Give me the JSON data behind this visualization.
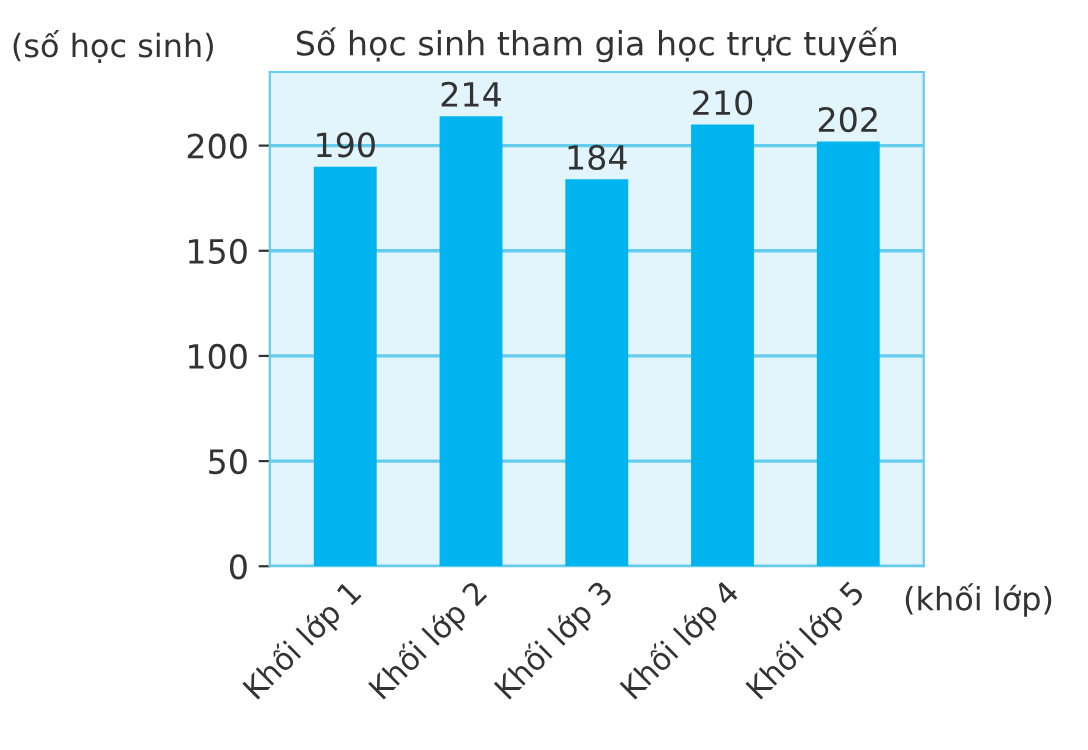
{
  "chart_data": {
    "type": "bar",
    "title": "Số học sinh tham gia học trực tuyến",
    "xlabel": "(khối lớp)",
    "ylabel": "(số học sinh)",
    "categories": [
      "Khối lớp 1",
      "Khối lớp 2",
      "Khối lớp 3",
      "Khối lớp 4",
      "Khối lớp 5"
    ],
    "values": [
      190,
      214,
      184,
      210,
      202
    ],
    "color": "#00b5ef",
    "ylim": [
      0,
      235
    ],
    "yticks": [
      0,
      50,
      100,
      150,
      200
    ],
    "grid": "y",
    "data_labels": true
  }
}
